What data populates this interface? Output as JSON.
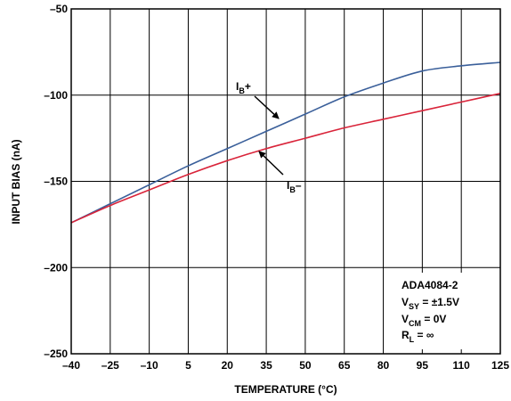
{
  "chart_data": {
    "type": "line",
    "title": "",
    "xlabel": "TEMPERATURE (°C)",
    "ylabel": "INPUT BIAS (nA)",
    "xlim": [
      -40,
      125
    ],
    "ylim": [
      -250,
      -50
    ],
    "grid": true,
    "xticks": [
      -40,
      -25,
      -10,
      5,
      20,
      35,
      50,
      65,
      80,
      95,
      110,
      125
    ],
    "xtick_labels": [
      "–40",
      "–25",
      "–10",
      "5",
      "20",
      "35",
      "50",
      "65",
      "80",
      "95",
      "110",
      "125"
    ],
    "yticks": [
      -250,
      -200,
      -150,
      -100,
      -50
    ],
    "ytick_labels": [
      "–250",
      "–200",
      "–150",
      "–100",
      "–50"
    ],
    "series": [
      {
        "name": "IB+",
        "color": "#3a5f9a",
        "x": [
          -40,
          -25,
          -10,
          5,
          20,
          35,
          50,
          65,
          80,
          95,
          110,
          125
        ],
        "y": [
          -174,
          -163,
          -152,
          -141,
          -131,
          -121,
          -111,
          -101,
          -93,
          -86,
          -83,
          -81
        ]
      },
      {
        "name": "IB–",
        "color": "#d9243a",
        "x": [
          -40,
          -25,
          -10,
          5,
          20,
          35,
          50,
          65,
          80,
          95,
          110,
          125
        ],
        "y": [
          -174,
          -164,
          -155,
          -146,
          -138,
          -131,
          -125,
          -119,
          -114,
          -109,
          -104,
          -99
        ]
      }
    ],
    "annotations": {
      "ib_plus": {
        "main": "I",
        "sub": "B",
        "suffix": "+"
      },
      "ib_minus": {
        "main": "I",
        "sub": "B",
        "suffix": "–"
      },
      "conditions": [
        {
          "main": "ADA4084-2",
          "sub": "",
          "suffix": ""
        },
        {
          "main": "V",
          "sub": "SY",
          "suffix": " = ±1.5V"
        },
        {
          "main": "V",
          "sub": "CM",
          "suffix": " = 0V"
        },
        {
          "main": "R",
          "sub": "L",
          "suffix": " = ∞"
        }
      ]
    }
  }
}
